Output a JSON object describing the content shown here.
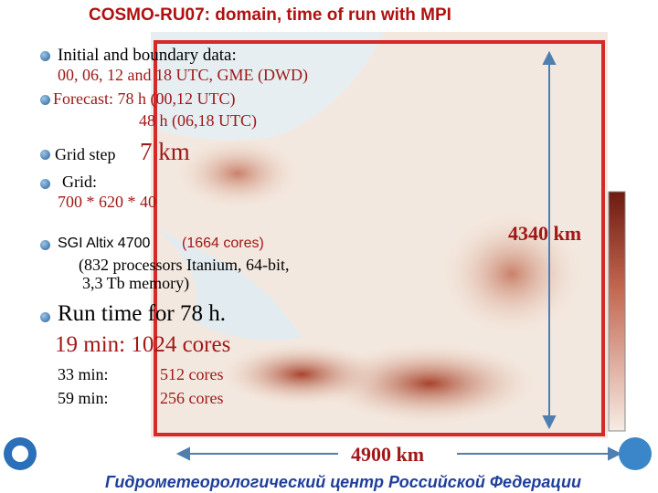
{
  "slide": {
    "title": "COSMO-RU07: domain, time of run with MPI",
    "bullets": [
      {
        "lines": [
          "Initial and boundary data:",
          "00, 06, 12 and 18 UTC,  GME (DWD)"
        ]
      },
      {
        "lines": [
          "Forecast: 78 h (00,12 UTC)",
          "48 h (06,18 UTC)"
        ]
      },
      {
        "label": "Grid step",
        "value": "7 km"
      },
      {
        "lines": [
          "Grid:",
          "700 * 620 * 40"
        ]
      },
      {
        "label": "SGI Altix 4700",
        "value": "(1664 cores)",
        "lines": [
          "(832 processors Itanium, 64-bit,",
          "3,3 Tb memory)"
        ]
      },
      {
        "lines": [
          "Run time for 78 h.",
          "19 min: 1024 cores"
        ]
      }
    ],
    "runs": [
      [
        "33 min:",
        "512 cores"
      ],
      [
        "59 min:",
        "256 cores"
      ]
    ],
    "height_label": "4340 km",
    "width_label": "4900 km",
    "footer": "Гидрометеорологический центр Российской Федерации"
  }
}
